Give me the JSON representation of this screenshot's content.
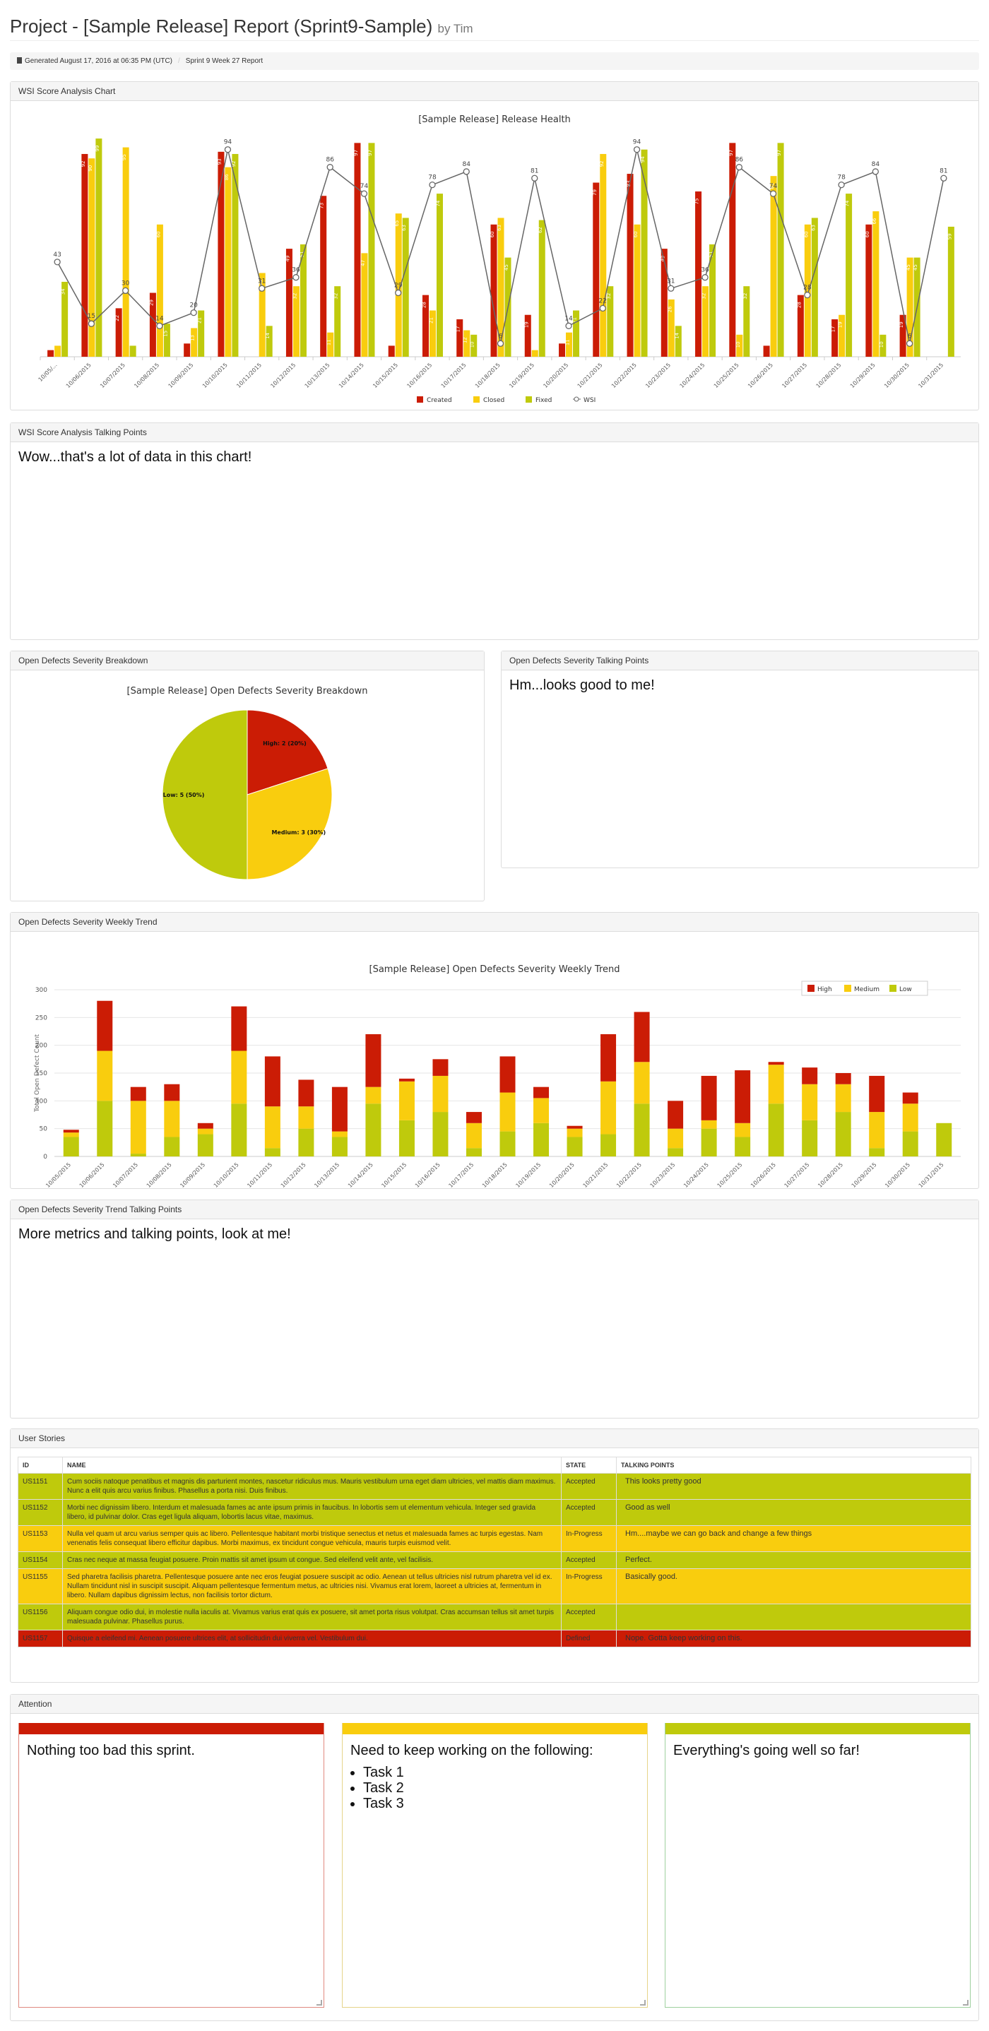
{
  "header": {
    "title": "Project - [Sample Release] Report (Sprint9-Sample)",
    "byline": "by Tim"
  },
  "breadcrumb": {
    "generated": "Generated August 17, 2016 at 06:35 PM (UTC)",
    "sprint": "Sprint 9 Week 27 Report"
  },
  "wsi_chart_panel": {
    "title": "WSI Score Analysis Chart"
  },
  "wsi_talk_panel": {
    "title": "WSI Score Analysis Talking Points",
    "text": "Wow...that's a lot of data in this chart!"
  },
  "pie_panel": {
    "title": "Open Defects Severity Breakdown"
  },
  "pie_talk_panel": {
    "title": "Open Defects Severity Talking Points",
    "text": "Hm...looks good to me!"
  },
  "trend_panel": {
    "title": "Open Defects Severity Weekly Trend"
  },
  "trend_talk_panel": {
    "title": "Open Defects Severity Trend Talking Points",
    "text": "More metrics and talking points, look at me!"
  },
  "stories_panel": {
    "title": "User Stories",
    "columns": [
      "ID",
      "NAME",
      "STATE",
      "TALKING POINTS"
    ],
    "rows": [
      {
        "id": "US1151",
        "name": "Cum sociis natoque penatibus et magnis dis parturient montes, nascetur ridiculus mus. Mauris vestibulum urna eget diam ultricies, vel mattis diam maximus. Nunc a elit quis arcu varius finibus. Phasellus a porta nisi. Duis finibus.",
        "state": "Accepted",
        "talking": "This looks pretty good",
        "color": "green"
      },
      {
        "id": "US1152",
        "name": "Morbi nec dignissim libero. Interdum et malesuada fames ac ante ipsum primis in faucibus. In lobortis sem ut elementum vehicula. Integer sed gravida libero, id pulvinar dolor. Cras eget ligula aliquam, lobortis lacus vitae, maximus.",
        "state": "Accepted",
        "talking": "Good as well",
        "color": "green"
      },
      {
        "id": "US1153",
        "name": "Nulla vel quam ut arcu varius semper quis ac libero. Pellentesque habitant morbi tristique senectus et netus et malesuada fames ac turpis egestas. Nam venenatis felis consequat libero efficitur dapibus. Morbi maximus, ex tincidunt congue vehicula, mauris turpis euismod velit.",
        "state": "In-Progress",
        "talking": "Hm....maybe we can go back and change a few things",
        "color": "yellow"
      },
      {
        "id": "US1154",
        "name": "Cras nec neque at massa feugiat posuere. Proin mattis sit amet ipsum ut congue. Sed eleifend velit ante, vel facilisis.",
        "state": "Accepted",
        "talking": "Perfect.",
        "color": "green"
      },
      {
        "id": "US1155",
        "name": "Sed pharetra facilisis pharetra. Pellentesque posuere ante nec eros feugiat posuere suscipit ac odio. Aenean ut tellus ultricies nisl rutrum pharetra vel id ex. Nullam tincidunt nisl in suscipit suscipit. Aliquam pellentesque fermentum metus, ac ultricies nisi. Vivamus erat lorem, laoreet a ultricies at, fermentum in libero. Nullam dapibus dignissim lectus, non facilisis tortor dictum.",
        "state": "In-Progress",
        "talking": "Basically good.",
        "color": "yellow"
      },
      {
        "id": "US1156",
        "name": "Aliquam congue odio dui, in molestie nulla iaculis at. Vivamus varius erat quis ex posuere, sit amet porta risus volutpat. Cras accumsan tellus sit amet turpis malesuada pulvinar. Phasellus purus.",
        "state": "Accepted",
        "talking": "",
        "color": "green"
      },
      {
        "id": "US1157",
        "name": "Quisque a eleifend mi. Aenean posuere ultrices elit, at sollicitudin dui viverra vel. Vestibulum dui.",
        "state": "Defined",
        "talking": "Nope. Gotta keep working on this.",
        "color": "red"
      }
    ]
  },
  "attention_panel": {
    "title": "Attention",
    "boxes": [
      {
        "color": "#cb1c05",
        "text": "Nothing too bad this sprint.",
        "items": []
      },
      {
        "color": "#f9cd0e",
        "text": "Need to keep working on the following:",
        "items": [
          "Task 1",
          "Task 2",
          "Task 3"
        ]
      },
      {
        "color": "#bfca0c",
        "text": "Everything's going well so far!",
        "items": []
      }
    ]
  },
  "colors": {
    "high": "#cb1c05",
    "medium": "#f9cd0e",
    "low": "#bfca0c",
    "wsi": "#666666"
  },
  "chart_data": [
    {
      "type": "bar",
      "title": "[Sample Release] Release Health",
      "categories": [
        "10/05/...",
        "10/06/2015",
        "10/07/2015",
        "10/08/2015",
        "10/09/2015",
        "10/10/2015",
        "10/11/2015",
        "10/12/2015",
        "10/13/2015",
        "10/14/2015",
        "10/15/2015",
        "10/16/2015",
        "10/17/2015",
        "10/18/2015",
        "10/19/2015",
        "10/20/2015",
        "10/21/2015",
        "10/22/2015",
        "10/23/2015",
        "10/24/2015",
        "10/25/2015",
        "10/26/2015",
        "10/27/2015",
        "10/28/2015",
        "10/29/2015",
        "10/30/2015",
        "10/31/2015"
      ],
      "series": [
        {
          "name": "Created",
          "values": [
            3,
            92,
            22,
            29,
            6,
            93,
            0,
            49,
            73,
            97,
            5,
            28,
            17,
            60,
            19,
            6,
            79,
            83,
            49,
            75,
            97,
            5,
            28,
            17,
            60,
            19,
            0
          ]
        },
        {
          "name": "Closed",
          "values": [
            5,
            90,
            95,
            60,
            13,
            86,
            38,
            32,
            11,
            47,
            65,
            21,
            12,
            63,
            3,
            11,
            92,
            60,
            26,
            32,
            10,
            82,
            60,
            19,
            66,
            45,
            0
          ]
        },
        {
          "name": "Fixed",
          "values": [
            34,
            99,
            5,
            15,
            21,
            92,
            14,
            51,
            32,
            97,
            63,
            74,
            10,
            45,
            62,
            21,
            32,
            94,
            14,
            51,
            32,
            97,
            63,
            74,
            10,
            45,
            59
          ]
        },
        {
          "name": "WSI",
          "type": "line",
          "values": [
            43,
            15,
            30,
            14,
            20,
            94,
            31,
            36,
            86,
            74,
            29,
            78,
            84,
            6,
            81,
            14,
            22,
            94,
            31,
            36,
            86,
            74,
            28,
            78,
            84,
            6,
            81
          ]
        }
      ],
      "legend": "bottom"
    },
    {
      "type": "pie",
      "title": "[Sample Release] Open Defects Severity Breakdown",
      "slices": [
        {
          "label": "High: 2 (20%)",
          "name": "High",
          "value": 2
        },
        {
          "label": "Medium: 3 (30%)",
          "name": "Medium",
          "value": 3
        },
        {
          "label": "Low: 5 (50%)",
          "name": "Low",
          "value": 5
        }
      ]
    },
    {
      "type": "bar",
      "stacked": true,
      "title": "[Sample Release] Open Defects Severity Weekly Trend",
      "ylabel": "Total Open Defect Count",
      "ylim": [
        0,
        300
      ],
      "yticks": [
        "0",
        "50",
        "100",
        "150",
        "200",
        "250",
        "300"
      ],
      "categories": [
        "10/05/2015",
        "10/06/2015",
        "10/07/2015",
        "10/08/2015",
        "10/09/2015",
        "10/10/2015",
        "10/11/2015",
        "10/12/2015",
        "10/13/2015",
        "10/14/2015",
        "10/15/2015",
        "10/16/2015",
        "10/17/2015",
        "10/18/2015",
        "10/19/2015",
        "10/20/2015",
        "10/21/2015",
        "10/22/2015",
        "10/23/2015",
        "10/24/2015",
        "10/25/2015",
        "10/26/2015",
        "10/27/2015",
        "10/28/2015",
        "10/29/2015",
        "10/30/2015",
        "10/31/2015"
      ],
      "series": [
        {
          "name": "Low",
          "values": [
            35,
            100,
            5,
            35,
            40,
            95,
            15,
            50,
            35,
            95,
            65,
            80,
            15,
            45,
            60,
            35,
            40,
            95,
            15,
            50,
            35,
            95,
            65,
            80,
            15,
            45,
            60
          ]
        },
        {
          "name": "Medium",
          "values": [
            8,
            90,
            95,
            65,
            10,
            95,
            75,
            40,
            10,
            30,
            70,
            65,
            45,
            70,
            45,
            15,
            95,
            75,
            35,
            15,
            25,
            70,
            65,
            50,
            65,
            50,
            0
          ]
        },
        {
          "name": "High",
          "values": [
            5,
            90,
            25,
            30,
            10,
            80,
            90,
            48,
            80,
            95,
            5,
            30,
            20,
            65,
            20,
            5,
            85,
            90,
            50,
            80,
            95,
            5,
            30,
            20,
            65,
            20,
            0
          ]
        }
      ],
      "legend": "top-right"
    }
  ]
}
